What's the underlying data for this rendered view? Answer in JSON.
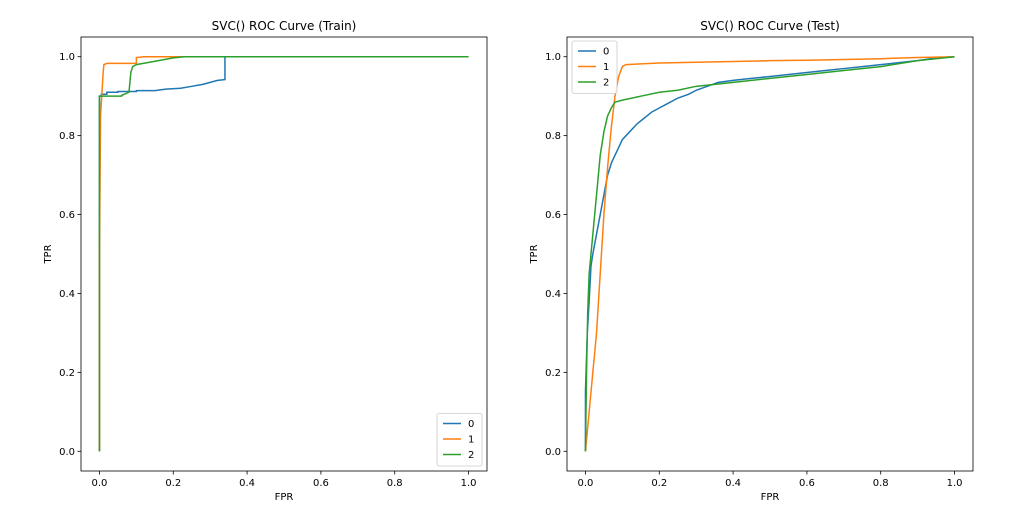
{
  "chart_data": [
    {
      "type": "line",
      "title": "SVC() ROC Curve (Train)",
      "xlabel": "FPR",
      "ylabel": "TPR",
      "xlim": [
        -0.05,
        1.05
      ],
      "ylim": [
        -0.05,
        1.05
      ],
      "xticks": [
        "0.0",
        "0.2",
        "0.4",
        "0.6",
        "0.8",
        "1.0"
      ],
      "yticks": [
        "0.0",
        "0.2",
        "0.4",
        "0.6",
        "0.8",
        "1.0"
      ],
      "grid": false,
      "legend_position": "lower-right",
      "series": [
        {
          "name": "0",
          "color": "#1f77b4",
          "x": [
            0.0,
            0.0,
            0.005,
            0.005,
            0.02,
            0.02,
            0.05,
            0.05,
            0.1,
            0.1,
            0.15,
            0.18,
            0.22,
            0.25,
            0.28,
            0.3,
            0.32,
            0.34,
            0.34,
            1.0
          ],
          "y": [
            0.0,
            0.9,
            0.9,
            0.905,
            0.905,
            0.91,
            0.91,
            0.912,
            0.912,
            0.914,
            0.914,
            0.918,
            0.92,
            0.925,
            0.93,
            0.935,
            0.94,
            0.942,
            1.0,
            1.0
          ]
        },
        {
          "name": "1",
          "color": "#ff7f0e",
          "x": [
            0.0,
            0.0,
            0.003,
            0.01,
            0.012,
            0.02,
            0.1,
            0.1,
            0.12,
            1.0
          ],
          "y": [
            0.0,
            0.5,
            0.85,
            0.96,
            0.98,
            0.983,
            0.983,
            0.998,
            1.0,
            1.0
          ]
        },
        {
          "name": "2",
          "color": "#2ca02c",
          "x": [
            0.0,
            0.0,
            0.002,
            0.002,
            0.06,
            0.06,
            0.08,
            0.085,
            0.09,
            0.1,
            0.13,
            0.16,
            0.2,
            0.23,
            1.0
          ],
          "y": [
            0.0,
            0.9,
            0.9,
            0.9,
            0.9,
            0.902,
            0.91,
            0.96,
            0.975,
            0.98,
            0.985,
            0.99,
            0.997,
            1.0,
            1.0
          ]
        }
      ]
    },
    {
      "type": "line",
      "title": "SVC() ROC Curve (Test)",
      "xlabel": "FPR",
      "ylabel": "TPR",
      "xlim": [
        -0.05,
        1.05
      ],
      "ylim": [
        -0.05,
        1.05
      ],
      "xticks": [
        "0.0",
        "0.2",
        "0.4",
        "0.6",
        "0.8",
        "1.0"
      ],
      "yticks": [
        "0.0",
        "0.2",
        "0.4",
        "0.6",
        "0.8",
        "1.0"
      ],
      "grid": false,
      "legend_position": "upper-left",
      "series": [
        {
          "name": "0",
          "color": "#1f77b4",
          "x": [
            0.0,
            0.0,
            0.005,
            0.01,
            0.015,
            0.02,
            0.03,
            0.04,
            0.05,
            0.06,
            0.07,
            0.08,
            0.09,
            0.1,
            0.12,
            0.14,
            0.16,
            0.18,
            0.2,
            0.22,
            0.25,
            0.28,
            0.3,
            0.33,
            0.36,
            0.4,
            0.45,
            0.5,
            0.55,
            0.6,
            0.65,
            0.7,
            0.75,
            0.8,
            0.85,
            0.9,
            0.95,
            1.0
          ],
          "y": [
            0.0,
            0.15,
            0.3,
            0.38,
            0.47,
            0.5,
            0.55,
            0.6,
            0.65,
            0.7,
            0.73,
            0.75,
            0.77,
            0.79,
            0.81,
            0.83,
            0.845,
            0.86,
            0.87,
            0.88,
            0.895,
            0.905,
            0.915,
            0.925,
            0.935,
            0.94,
            0.945,
            0.95,
            0.955,
            0.96,
            0.965,
            0.97,
            0.975,
            0.98,
            0.985,
            0.99,
            0.997,
            1.0
          ]
        },
        {
          "name": "1",
          "color": "#ff7f0e",
          "x": [
            0.0,
            0.005,
            0.01,
            0.015,
            0.02,
            0.025,
            0.03,
            0.04,
            0.05,
            0.06,
            0.07,
            0.08,
            0.09,
            0.1,
            0.11,
            0.15,
            0.2,
            0.3,
            0.4,
            0.5,
            0.6,
            0.7,
            0.8,
            0.9,
            1.0
          ],
          "y": [
            0.0,
            0.05,
            0.1,
            0.15,
            0.2,
            0.25,
            0.3,
            0.45,
            0.6,
            0.72,
            0.82,
            0.9,
            0.95,
            0.975,
            0.98,
            0.982,
            0.984,
            0.986,
            0.988,
            0.99,
            0.991,
            0.993,
            0.995,
            0.998,
            1.0
          ]
        },
        {
          "name": "2",
          "color": "#2ca02c",
          "x": [
            0.0,
            0.003,
            0.006,
            0.01,
            0.015,
            0.02,
            0.03,
            0.04,
            0.05,
            0.06,
            0.07,
            0.08,
            0.1,
            0.15,
            0.2,
            0.25,
            0.3,
            0.35,
            0.4,
            0.5,
            0.6,
            0.7,
            0.8,
            0.9,
            1.0
          ],
          "y": [
            0.0,
            0.2,
            0.35,
            0.45,
            0.5,
            0.55,
            0.65,
            0.75,
            0.81,
            0.85,
            0.87,
            0.885,
            0.89,
            0.9,
            0.91,
            0.915,
            0.925,
            0.93,
            0.935,
            0.945,
            0.955,
            0.965,
            0.975,
            0.99,
            1.0
          ]
        }
      ]
    }
  ]
}
